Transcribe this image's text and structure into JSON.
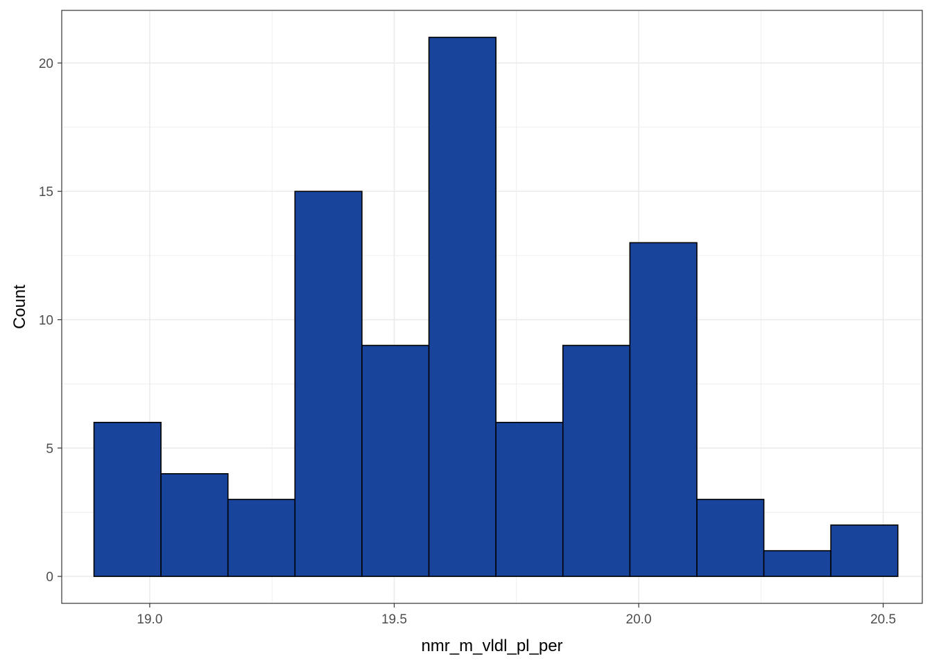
{
  "chart_data": {
    "type": "bar",
    "xlabel": "nmr_m_vldl_pl_per",
    "ylabel": "Count",
    "xlim": [
      18.82,
      20.58
    ],
    "ylim": [
      -1.05,
      22.05
    ],
    "x_ticks": [
      {
        "value": 19.0,
        "label": "19.0"
      },
      {
        "value": 19.5,
        "label": "19.5"
      },
      {
        "value": 20.0,
        "label": "20.0"
      },
      {
        "value": 20.5,
        "label": "20.5"
      }
    ],
    "y_ticks": [
      {
        "value": 0,
        "label": "0"
      },
      {
        "value": 5,
        "label": "5"
      },
      {
        "value": 10,
        "label": "10"
      },
      {
        "value": 15,
        "label": "15"
      },
      {
        "value": 20,
        "label": "20"
      }
    ],
    "bins": [
      {
        "x0": 18.886,
        "x1": 19.023,
        "count": 6
      },
      {
        "x0": 19.023,
        "x1": 19.16,
        "count": 4
      },
      {
        "x0": 19.16,
        "x1": 19.297,
        "count": 3
      },
      {
        "x0": 19.297,
        "x1": 19.434,
        "count": 15
      },
      {
        "x0": 19.434,
        "x1": 19.571,
        "count": 9
      },
      {
        "x0": 19.571,
        "x1": 19.708,
        "count": 21
      },
      {
        "x0": 19.708,
        "x1": 19.845,
        "count": 6
      },
      {
        "x0": 19.845,
        "x1": 19.982,
        "count": 9
      },
      {
        "x0": 19.982,
        "x1": 20.119,
        "count": 13
      },
      {
        "x0": 20.119,
        "x1": 20.256,
        "count": 3
      },
      {
        "x0": 20.256,
        "x1": 20.393,
        "count": 1
      },
      {
        "x0": 20.393,
        "x1": 20.53,
        "count": 2
      }
    ],
    "grid": true,
    "bar_color": "#18449b",
    "bar_outline": "#000000",
    "grid_color": "#ebebeb"
  }
}
